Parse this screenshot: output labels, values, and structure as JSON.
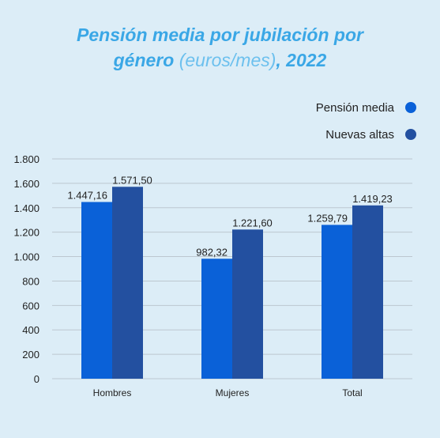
{
  "title": {
    "part1": "Pensión media por jubilación por",
    "part2": "género",
    "unit": "(euros/mes)",
    "part3": ", 2022"
  },
  "colors": {
    "background": "#dcedf7",
    "series1": "#0a61d8",
    "series2": "#2350a0",
    "title": "#3aa7e6"
  },
  "chart_data": {
    "type": "bar",
    "categories": [
      "Hombres",
      "Mujeres",
      "Total"
    ],
    "series": [
      {
        "name": "Pensión media",
        "values": [
          1447.16,
          982.32,
          1259.79
        ],
        "labels": [
          "1.447,16",
          "982,32",
          "1.259,79"
        ]
      },
      {
        "name": "Nuevas altas",
        "values": [
          1571.5,
          1221.6,
          1419.23
        ],
        "labels": [
          "1.571,50",
          "1.221,60",
          "1.419,23"
        ]
      }
    ],
    "ylim": [
      0,
      1800
    ],
    "yticks": [
      0,
      200,
      400,
      600,
      800,
      1000,
      1200,
      1400,
      1600,
      1800
    ],
    "ytick_labels": [
      "0",
      "200",
      "400",
      "600",
      "800",
      "1.000",
      "1.200",
      "1.400",
      "1.600",
      "1.800"
    ],
    "grid": true,
    "legend": "top-right"
  }
}
